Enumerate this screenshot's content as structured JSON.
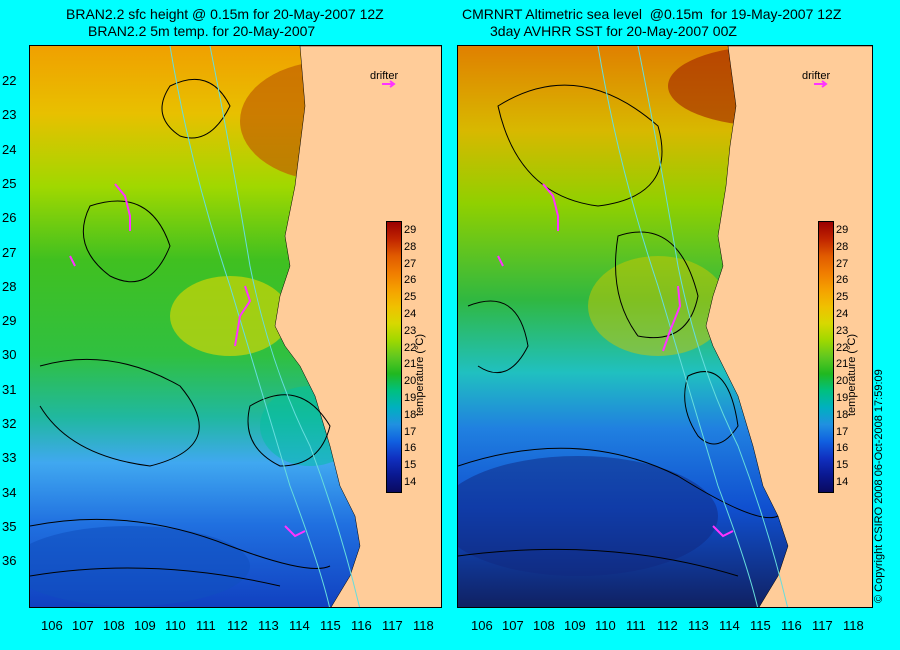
{
  "left_panel": {
    "title_line1": "BRAN2.2 sfc height @ 0.15m for 20-May-2007 12Z",
    "title_line2": "BRAN2.2 5m temp. for 20-May-2007",
    "drifter_label": "drifter"
  },
  "right_panel": {
    "title_line1": "CMRNRT Altimetric sea level  @0.15m  for 19-May-2007 12Z",
    "title_line2": "3day AVHRR SST for 20-May-2007 00Z",
    "drifter_label": "drifter"
  },
  "axes": {
    "latitudes": [
      "22",
      "23",
      "24",
      "25",
      "26",
      "27",
      "28",
      "29",
      "30",
      "31",
      "32",
      "33",
      "34",
      "35",
      "36"
    ],
    "longitudes": [
      "106",
      "107",
      "108",
      "109",
      "110",
      "111",
      "112",
      "113",
      "114",
      "115",
      "116",
      "117",
      "118"
    ]
  },
  "colorbar": {
    "title": "temperature (°C)",
    "ticks": [
      "29",
      "28",
      "27",
      "26",
      "25",
      "24",
      "23",
      "22",
      "21",
      "20",
      "19",
      "18",
      "17",
      "16",
      "15",
      "14"
    ],
    "colors": [
      "#9a0000",
      "#c02400",
      "#e05a00",
      "#f07c00",
      "#f5a000",
      "#f0c000",
      "#d8d800",
      "#a0d800",
      "#60c820",
      "#20b820",
      "#00c080",
      "#00b0c0",
      "#2090e0",
      "#1060e0",
      "#1030c0",
      "#0a1890",
      "#0a0a60"
    ]
  },
  "copyright": "© Copyright CSIRO 2008    06-Oct-2008 17:59:09",
  "colors": {
    "land": "#ffcc99",
    "frame": "#00ffff",
    "drifter": "#ff33ff",
    "contour": "#000000",
    "bathymetry": "#66dddd"
  }
}
